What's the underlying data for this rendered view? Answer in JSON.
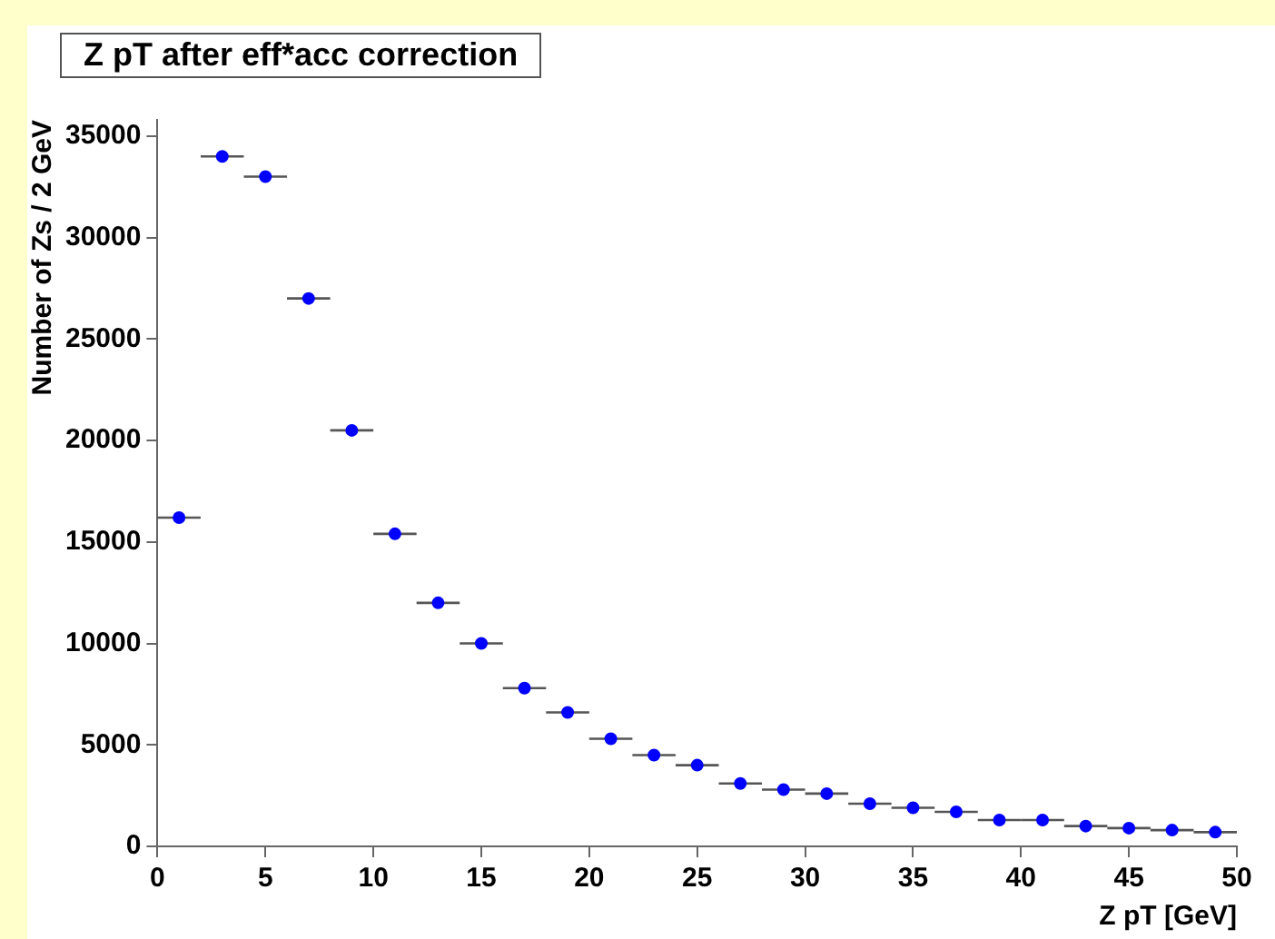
{
  "chart_data": {
    "type": "scatter",
    "title": "Z pT after eff*acc correction",
    "xlabel": "Z pT [GeV]",
    "ylabel": "Number of Zs / 2 GeV",
    "x": [
      1,
      3,
      5,
      7,
      9,
      11,
      13,
      15,
      17,
      19,
      21,
      23,
      25,
      27,
      29,
      31,
      33,
      35,
      37,
      39,
      41,
      43,
      45,
      47,
      49
    ],
    "series": [
      {
        "color": "#0000ff",
        "values": [
          16200,
          34000,
          33000,
          27000,
          20500,
          15400,
          12000,
          10000,
          7800,
          6600,
          5300,
          4500,
          4000,
          3100,
          2800,
          2600,
          2100,
          1900,
          1700,
          1300,
          1300,
          1000,
          900,
          800,
          700
        ],
        "xerrors": [
          1,
          1,
          1,
          1,
          1,
          1,
          1,
          1,
          1,
          1,
          1,
          1,
          1,
          1,
          1,
          1,
          1,
          1,
          1,
          1,
          1,
          1,
          1,
          1,
          1
        ]
      }
    ],
    "xlim": [
      0,
      50
    ],
    "xticks": [
      0,
      5,
      10,
      15,
      20,
      25,
      30,
      35,
      40,
      45,
      50
    ],
    "ylim": [
      0,
      35800
    ],
    "yticks": [
      0,
      5000,
      10000,
      15000,
      20000,
      25000,
      30000,
      35000
    ],
    "marker": "circle",
    "grid": false,
    "legend": false
  }
}
